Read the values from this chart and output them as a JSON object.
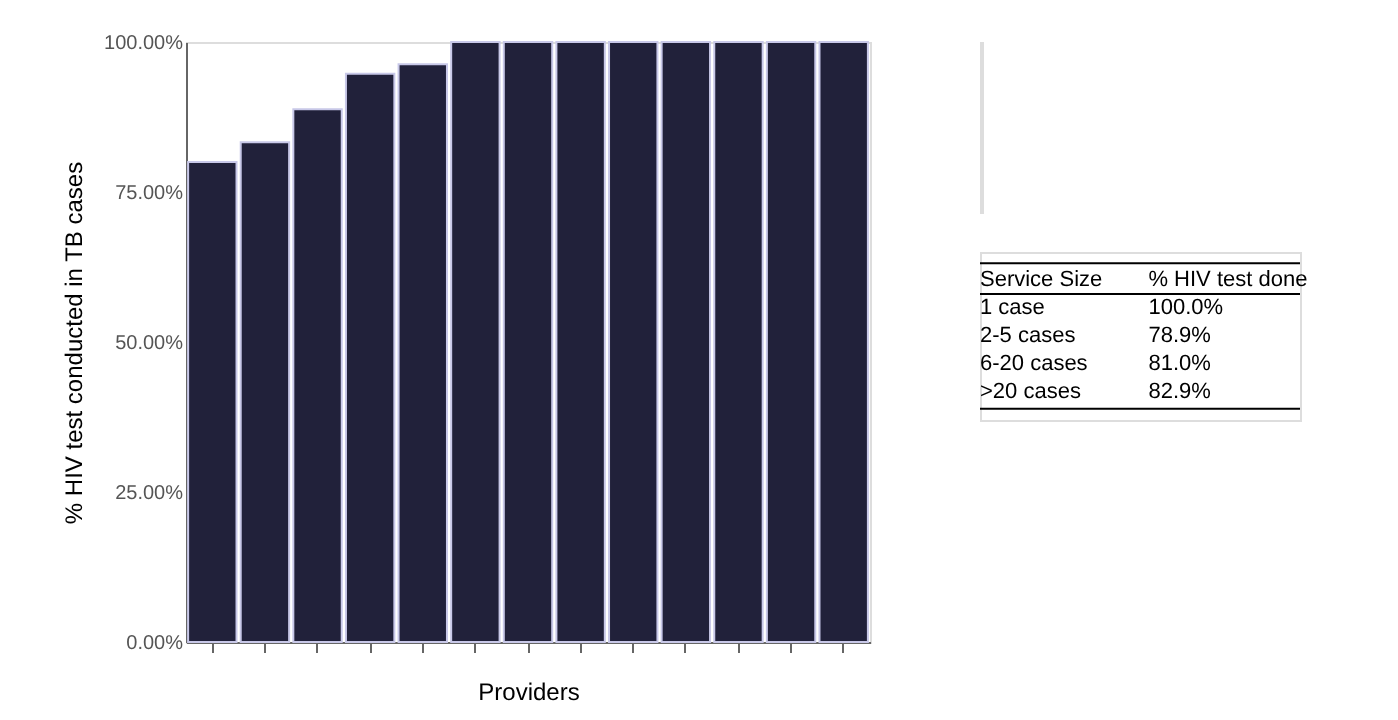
{
  "chart_data": {
    "type": "bar",
    "categories": [
      null,
      null,
      null,
      null,
      null,
      null,
      null,
      null,
      null,
      null,
      null,
      null,
      null
    ],
    "values": [
      80,
      83.3,
      88.8,
      94.7,
      96.3,
      100,
      100,
      100,
      100,
      100,
      100,
      100,
      100
    ],
    "color": "#21213a",
    "xlabel": "Providers",
    "ylabel": "% HIV test conducted in TB cases",
    "ylim": [
      0,
      100
    ],
    "yticks": [
      {
        "value": 0,
        "label": "0.00%"
      },
      {
        "value": 25,
        "label": "25.00%"
      },
      {
        "value": 50,
        "label": "50.00%"
      },
      {
        "value": 75,
        "label": "75.00%"
      },
      {
        "value": 100,
        "label": "100.00%"
      }
    ],
    "grid": false,
    "annotations": [
      "Service Size",
      "% HIV test done",
      "1 case",
      "100.0%",
      "2-5 cases",
      "78.9%",
      "6-20 cases",
      "81.0%",
      ">20 cases",
      "82.9%"
    ]
  }
}
